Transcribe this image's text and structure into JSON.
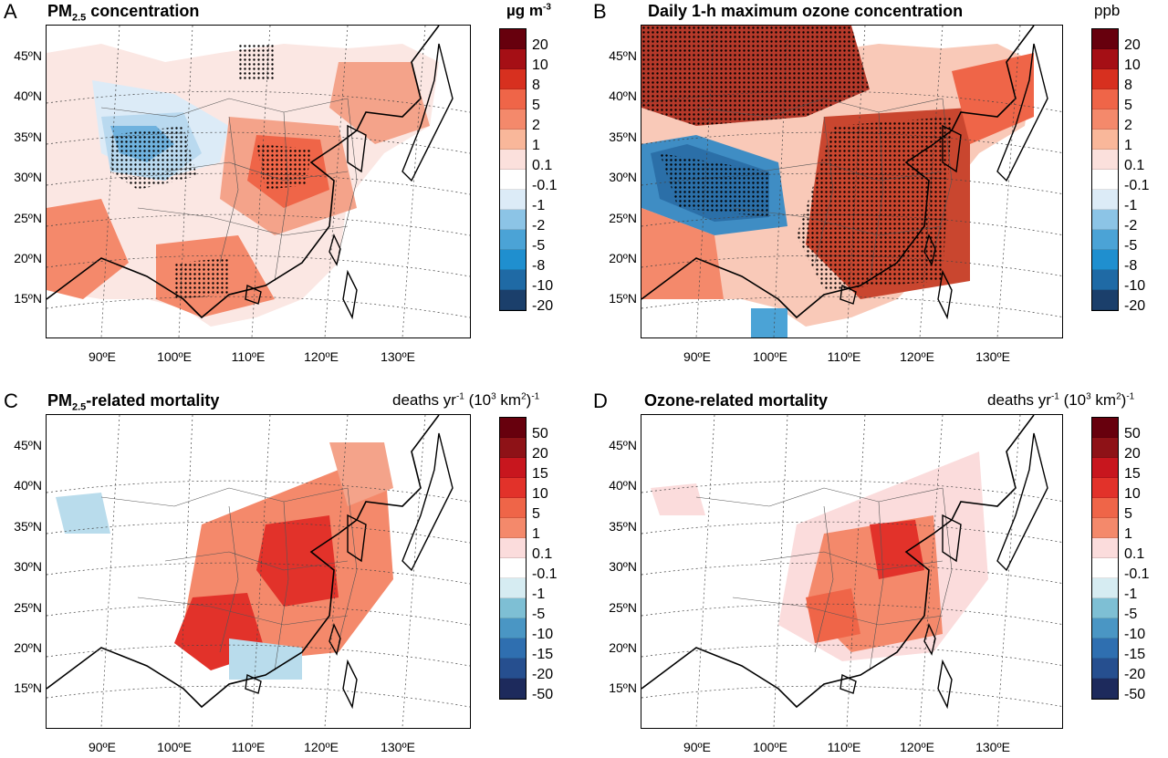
{
  "panels": [
    {
      "letter": "A",
      "title_main": "PM",
      "title_sub": "2.5",
      "title_rest": " concentration",
      "unit_a": "µg m",
      "unit_sup1": "-3",
      "unit_b": "",
      "unit_sup2": "",
      "unit_c": "",
      "colorbar_labels": [
        "20",
        "10",
        "8",
        "5",
        "2",
        "1",
        "0.1",
        "-0.1",
        "-1",
        "-2",
        "-5",
        "-8",
        "-10",
        "-20"
      ],
      "colorbar_colors": [
        "#67000d",
        "#a50f15",
        "#d7301f",
        "#ef6548",
        "#f4896b",
        "#f9b79a",
        "#fbe0dc",
        "#ffffff",
        "#dcebf7",
        "#8cc4e6",
        "#4ba3d6",
        "#1f8fcf",
        "#1f6aa5",
        "#1b3f6b"
      ]
    },
    {
      "letter": "B",
      "title_main": "Daily 1-h maximum ozone concentration",
      "title_sub": "",
      "title_rest": "",
      "unit_a": "ppb",
      "unit_sup1": "",
      "unit_b": "",
      "unit_sup2": "",
      "unit_c": "",
      "colorbar_labels": [
        "20",
        "10",
        "8",
        "5",
        "2",
        "1",
        "0.1",
        "-0.1",
        "-1",
        "-2",
        "-5",
        "-8",
        "-10",
        "-20"
      ],
      "colorbar_colors": [
        "#67000d",
        "#a50f15",
        "#d7301f",
        "#ef6548",
        "#f4896b",
        "#f9b79a",
        "#fbe0dc",
        "#ffffff",
        "#dcebf7",
        "#8cc4e6",
        "#4ba3d6",
        "#1f8fcf",
        "#1f6aa5",
        "#1b3f6b"
      ]
    },
    {
      "letter": "C",
      "title_main": "PM",
      "title_sub": "2.5",
      "title_rest": "-related mortality",
      "unit_a": "deaths yr",
      "unit_sup1": "-1",
      "unit_b": " (10",
      "unit_sup2": "3",
      "unit_c": " km",
      "unit_sup3": "2",
      "unit_d": ")",
      "unit_sup4": "-1",
      "colorbar_labels": [
        "50",
        "20",
        "15",
        "10",
        "5",
        "1",
        "0.1",
        "-0.1",
        "-1",
        "-5",
        "-10",
        "-15",
        "-20",
        "-50"
      ],
      "colorbar_colors": [
        "#67000d",
        "#8e1217",
        "#c8161e",
        "#e2322a",
        "#ef6548",
        "#f4896b",
        "#fbdcdc",
        "#ffffff",
        "#d6ecf2",
        "#7ebfd4",
        "#4a96c4",
        "#2f6fb0",
        "#264f8f",
        "#1d2a5c"
      ]
    },
    {
      "letter": "D",
      "title_main": "Ozone-related mortality",
      "title_sub": "",
      "title_rest": "",
      "unit_a": "deaths yr",
      "unit_sup1": "-1",
      "unit_b": " (10",
      "unit_sup2": "3",
      "unit_c": " km",
      "unit_sup3": "2",
      "unit_d": ")",
      "unit_sup4": "-1",
      "colorbar_labels": [
        "50",
        "20",
        "15",
        "10",
        "5",
        "1",
        "0.1",
        "-0.1",
        "-1",
        "-5",
        "-10",
        "-15",
        "-20",
        "-50"
      ],
      "colorbar_colors": [
        "#67000d",
        "#8e1217",
        "#c8161e",
        "#e2322a",
        "#ef6548",
        "#f4896b",
        "#fbdcdc",
        "#ffffff",
        "#d6ecf2",
        "#7ebfd4",
        "#4a96c4",
        "#2f6fb0",
        "#264f8f",
        "#1d2a5c"
      ]
    }
  ],
  "lat_labels": [
    "45ºN",
    "40ºN",
    "35ºN",
    "30ºN",
    "25ºN",
    "20ºN",
    "15ºN"
  ],
  "lon_labels": [
    "90ºE",
    "100ºE",
    "110ºE",
    "120ºE",
    "130ºE"
  ]
}
